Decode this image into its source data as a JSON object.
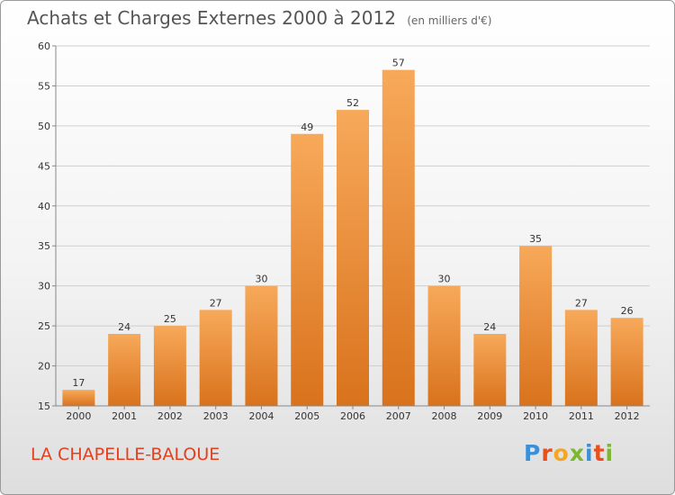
{
  "header": {
    "title": "Achats et Charges Externes 2000 à 2012",
    "subtitle": "(en milliers d'€)"
  },
  "footer": {
    "commune": "LA CHAPELLE-BALOUE",
    "logo": {
      "text": "Proxiti",
      "letters": [
        {
          "char": "P",
          "color": "#3b8fd6"
        },
        {
          "char": "r",
          "color": "#e94e1b"
        },
        {
          "char": "o",
          "color": "#f5a623"
        },
        {
          "char": "x",
          "color": "#7cb82f"
        },
        {
          "char": "i",
          "color": "#3b8fd6"
        },
        {
          "char": "t",
          "color": "#e94e1b"
        },
        {
          "char": "i",
          "color": "#7cb82f"
        }
      ]
    }
  },
  "chart_data": {
    "type": "bar",
    "title": "Achats et Charges Externes 2000 à 2012",
    "subtitle": "(en milliers d'€)",
    "categories": [
      "2000",
      "2001",
      "2002",
      "2003",
      "2004",
      "2005",
      "2006",
      "2007",
      "2008",
      "2009",
      "2010",
      "2011",
      "2012"
    ],
    "values": [
      17,
      24,
      25,
      27,
      30,
      49,
      52,
      57,
      30,
      24,
      35,
      27,
      26
    ],
    "xlabel": "",
    "ylabel": "",
    "ylim": [
      15,
      60
    ],
    "yticks": [
      15,
      20,
      25,
      30,
      35,
      40,
      45,
      50,
      55,
      60
    ],
    "grid": true,
    "legend": "none",
    "colors": {
      "bar_light": "#f7a95a",
      "bar_dark": "#d9721c",
      "grid": "#cfcfcf",
      "axis": "#888888"
    }
  }
}
